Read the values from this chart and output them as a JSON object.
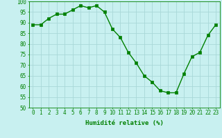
{
  "x": [
    0,
    1,
    2,
    3,
    4,
    5,
    6,
    7,
    8,
    9,
    10,
    11,
    12,
    13,
    14,
    15,
    16,
    17,
    18,
    19,
    20,
    21,
    22,
    23
  ],
  "y": [
    89,
    89,
    92,
    94,
    94,
    96,
    98,
    97,
    98,
    95,
    87,
    83,
    76,
    71,
    65,
    62,
    58,
    57,
    57,
    66,
    74,
    76,
    84,
    89
  ],
  "line_color": "#008000",
  "marker": "s",
  "marker_size": 2.2,
  "bg_color": "#c8f0f0",
  "grid_color": "#a8d8d8",
  "xlabel": "Humidité relative (%)",
  "ylim": [
    50,
    100
  ],
  "xlim": [
    -0.5,
    23.5
  ],
  "yticks": [
    50,
    55,
    60,
    65,
    70,
    75,
    80,
    85,
    90,
    95,
    100
  ],
  "xticks": [
    0,
    1,
    2,
    3,
    4,
    5,
    6,
    7,
    8,
    9,
    10,
    11,
    12,
    13,
    14,
    15,
    16,
    17,
    18,
    19,
    20,
    21,
    22,
    23
  ],
  "xlabel_fontsize": 6.5,
  "tick_fontsize": 5.5,
  "line_width": 1.0
}
